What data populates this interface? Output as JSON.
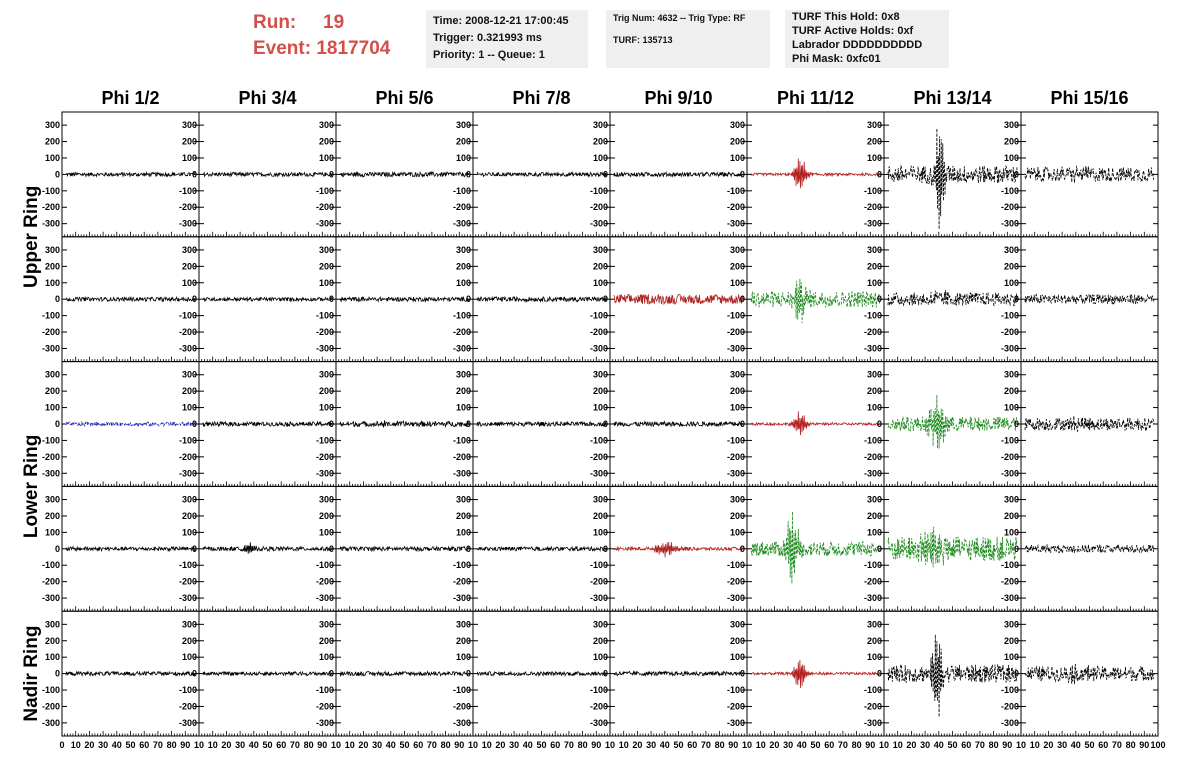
{
  "header": {
    "run_label": "Run:",
    "run_value": "19",
    "event_label": "Event:",
    "event_value": "1817704",
    "info_box_1": [
      "Time: 2008-12-21 17:00:45",
      "Trigger: 0.321993 ms",
      "Priority: 1 -- Queue: 1"
    ],
    "info_box_2": [
      "Trig Num: 4632 -- Trig Type: RF",
      "TURF: 135713"
    ],
    "info_box_3": [
      "TURF This Hold: 0x8",
      "TURF Active Holds: 0xf",
      "Labrador DDDDDDDDDD",
      "Phi Mask: 0xfc01"
    ]
  },
  "colors": {
    "black": "#000000",
    "red": "#b22222",
    "green": "#1e8a1e",
    "blue": "#1a1aa8",
    "header_red": "#d2504a",
    "info_bg": "#efefef"
  },
  "chart_data": {
    "type": "line",
    "columns": [
      "Phi 1/2",
      "Phi 3/4",
      "Phi 5/6",
      "Phi 7/8",
      "Phi 9/10",
      "Phi 11/12",
      "Phi 13/14",
      "Phi 15/16"
    ],
    "row_groups": [
      "Upper Ring",
      "Lower Ring",
      "Nadir Ring"
    ],
    "rows": 5,
    "ylim": [
      -380,
      380
    ],
    "yticks": [
      300,
      200,
      100,
      0,
      -100,
      -200,
      -300
    ],
    "xlim": [
      0,
      100
    ],
    "xticks": [
      0,
      10,
      20,
      30,
      40,
      50,
      60,
      70,
      80,
      90,
      100
    ],
    "x_tick_labels_first": "0 10 20 30 40 50 60 70 80 90 10",
    "x_tick_labels_mid": "10 20 30 40 50 60 70 80 90 10",
    "x_tick_labels_last": "10 20 30 40 50 60 70 80 90 100",
    "panels": [
      [
        {
          "color": "black",
          "amp": 12,
          "burst": 0,
          "center": 45,
          "width": 10,
          "dashed": false
        },
        {
          "color": "black",
          "amp": 12,
          "burst": 0,
          "center": 45,
          "width": 10,
          "dashed": false
        },
        {
          "color": "black",
          "amp": 14,
          "burst": 0,
          "center": 45,
          "width": 10,
          "dashed": false
        },
        {
          "color": "black",
          "amp": 12,
          "burst": 0,
          "center": 45,
          "width": 10,
          "dashed": false
        },
        {
          "color": "black",
          "amp": 13,
          "burst": 0,
          "center": 45,
          "width": 10,
          "dashed": false
        },
        {
          "color": "red",
          "amp": 8,
          "burst": 110,
          "center": 38,
          "width": 5,
          "dashed": false
        },
        {
          "color": "black",
          "amp": 55,
          "burst": 340,
          "center": 40,
          "width": 4,
          "dashed": true
        },
        {
          "color": "black",
          "amp": 45,
          "burst": 20,
          "center": 40,
          "width": 10,
          "dashed": true
        }
      ],
      [
        {
          "color": "black",
          "amp": 12,
          "burst": 0,
          "center": 45,
          "width": 10,
          "dashed": false
        },
        {
          "color": "black",
          "amp": 11,
          "burst": 0,
          "center": 45,
          "width": 10,
          "dashed": false
        },
        {
          "color": "black",
          "amp": 13,
          "burst": 0,
          "center": 45,
          "width": 10,
          "dashed": false
        },
        {
          "color": "black",
          "amp": 14,
          "burst": 0,
          "center": 45,
          "width": 10,
          "dashed": false
        },
        {
          "color": "red",
          "amp": 30,
          "burst": 0,
          "center": 45,
          "width": 10,
          "dashed": false
        },
        {
          "color": "green",
          "amp": 50,
          "burst": 140,
          "center": 38,
          "width": 5,
          "dashed": true
        },
        {
          "color": "black",
          "amp": 40,
          "burst": 30,
          "center": 40,
          "width": 10,
          "dashed": true
        },
        {
          "color": "black",
          "amp": 30,
          "burst": 0,
          "center": 45,
          "width": 10,
          "dashed": true
        }
      ],
      [
        {
          "color": "blue",
          "amp": 12,
          "burst": 0,
          "center": 45,
          "width": 10,
          "dashed": true
        },
        {
          "color": "black",
          "amp": 13,
          "burst": 0,
          "center": 45,
          "width": 10,
          "dashed": false
        },
        {
          "color": "black",
          "amp": 16,
          "burst": 12,
          "center": 35,
          "width": 8,
          "dashed": false
        },
        {
          "color": "black",
          "amp": 13,
          "burst": 0,
          "center": 45,
          "width": 10,
          "dashed": false
        },
        {
          "color": "black",
          "amp": 14,
          "burst": 0,
          "center": 45,
          "width": 10,
          "dashed": false
        },
        {
          "color": "red",
          "amp": 8,
          "burst": 80,
          "center": 38,
          "width": 5,
          "dashed": false
        },
        {
          "color": "green",
          "amp": 45,
          "burst": 170,
          "center": 38,
          "width": 6,
          "dashed": true
        },
        {
          "color": "black",
          "amp": 40,
          "burst": 15,
          "center": 40,
          "width": 10,
          "dashed": true
        }
      ],
      [
        {
          "color": "black",
          "amp": 12,
          "burst": 0,
          "center": 45,
          "width": 10,
          "dashed": false
        },
        {
          "color": "black",
          "amp": 12,
          "burst": 40,
          "center": 36,
          "width": 4,
          "dashed": false
        },
        {
          "color": "black",
          "amp": 13,
          "burst": 0,
          "center": 45,
          "width": 10,
          "dashed": false
        },
        {
          "color": "black",
          "amp": 12,
          "burst": 0,
          "center": 45,
          "width": 10,
          "dashed": false
        },
        {
          "color": "red",
          "amp": 10,
          "burst": 45,
          "center": 40,
          "width": 10,
          "dashed": false
        },
        {
          "color": "green",
          "amp": 45,
          "burst": 220,
          "center": 32,
          "width": 5,
          "dashed": true
        },
        {
          "color": "green",
          "amp": 75,
          "burst": 100,
          "center": 35,
          "width": 10,
          "dashed": true
        },
        {
          "color": "black",
          "amp": 25,
          "burst": 0,
          "center": 45,
          "width": 10,
          "dashed": true
        }
      ],
      [
        {
          "color": "black",
          "amp": 12,
          "burst": 0,
          "center": 45,
          "width": 10,
          "dashed": false
        },
        {
          "color": "black",
          "amp": 11,
          "burst": 0,
          "center": 45,
          "width": 10,
          "dashed": false
        },
        {
          "color": "black",
          "amp": 13,
          "burst": 0,
          "center": 45,
          "width": 10,
          "dashed": false
        },
        {
          "color": "black",
          "amp": 12,
          "burst": 0,
          "center": 45,
          "width": 10,
          "dashed": false
        },
        {
          "color": "black",
          "amp": 13,
          "burst": 0,
          "center": 45,
          "width": 10,
          "dashed": false
        },
        {
          "color": "red",
          "amp": 8,
          "burst": 100,
          "center": 38,
          "width": 5,
          "dashed": false
        },
        {
          "color": "black",
          "amp": 55,
          "burst": 300,
          "center": 38,
          "width": 4,
          "dashed": true
        },
        {
          "color": "black",
          "amp": 45,
          "burst": 30,
          "center": 40,
          "width": 10,
          "dashed": true
        }
      ]
    ]
  }
}
